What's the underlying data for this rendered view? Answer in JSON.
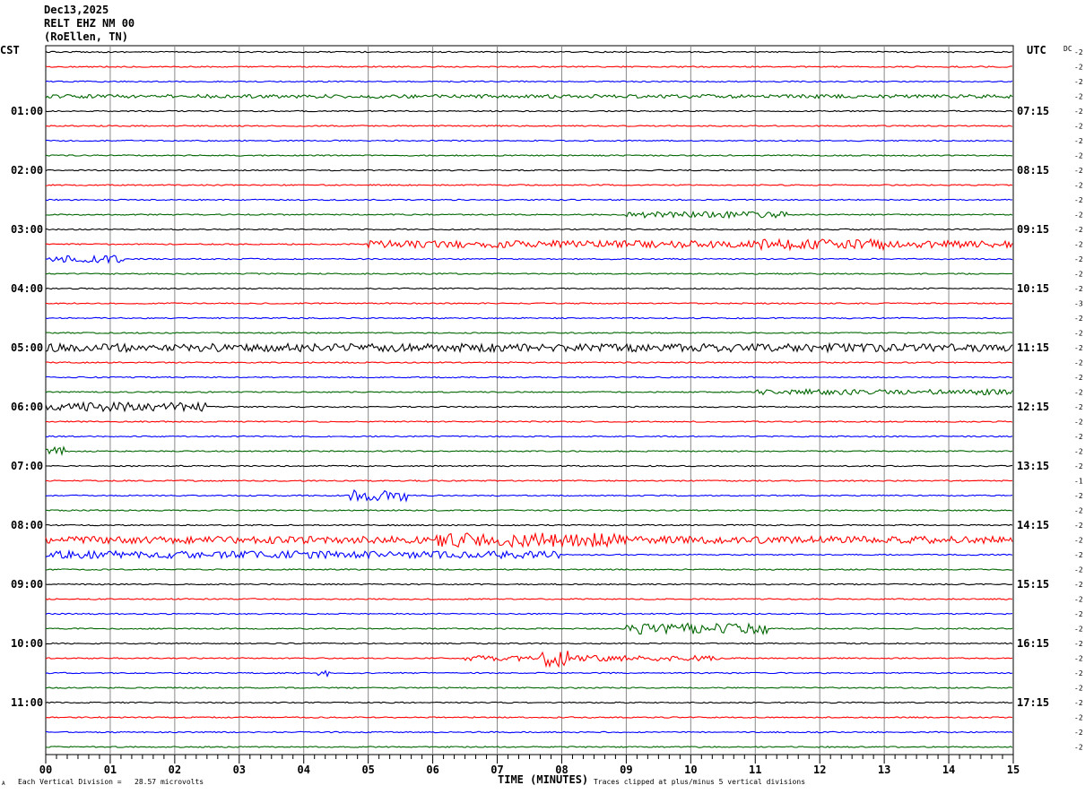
{
  "header": {
    "date": "Dec13,2025",
    "station": "RELT EHZ NM 00",
    "location": "(RoEllen, TN)",
    "left_timezone": "CST",
    "right_timezone": "UTC",
    "dc_label": "DC"
  },
  "footer": {
    "axis_title": "TIME (MINUTES)",
    "scale_note": "Each Vertical Division =   28.57 microvolts",
    "clip_note": "Traces clipped at plus/minus 5 vertical divisions",
    "corner_mark": "A"
  },
  "chart_data": {
    "type": "line",
    "title": "RELT EHZ NM 00",
    "xlabel": "TIME (MINUTES)",
    "ylabel": "",
    "xlim": [
      0,
      15
    ],
    "x_ticks": [
      "00",
      "01",
      "02",
      "03",
      "04",
      "05",
      "06",
      "07",
      "08",
      "09",
      "10",
      "11",
      "12",
      "13",
      "14",
      "15"
    ],
    "trace_minutes": 15,
    "trace_colors": [
      "#000000",
      "#ff0000",
      "#0000ff",
      "#006600"
    ],
    "left_hour_labels": [
      "01:00",
      "02:00",
      "03:00",
      "04:00",
      "05:00",
      "06:00",
      "07:00",
      "08:00",
      "09:00",
      "10:00",
      "11:00"
    ],
    "right_hour_labels": [
      "07:15",
      "08:15",
      "09:15",
      "10:15",
      "11:15",
      "12:15",
      "13:15",
      "14:15",
      "15:15",
      "16:15",
      "17:15"
    ],
    "dc_offsets": [
      "-2",
      "-2",
      "-2",
      "-2",
      "-2",
      "-2",
      "-2",
      "-2",
      "-2",
      "-2",
      "-2",
      "-2",
      "-2",
      "-2",
      "-2",
      "-2",
      "-2",
      "-3",
      "-2",
      "-2",
      "-2",
      "-2",
      "-2",
      "-2",
      "-2",
      "-2",
      "-2",
      "-2",
      "-2",
      "-1",
      "-2",
      "-2",
      "-2",
      "-2",
      "-2",
      "-2",
      "-2",
      "-2",
      "-2",
      "-2",
      "-2",
      "-2",
      "-2",
      "-2",
      "-2",
      "-2",
      "-2",
      "-2"
    ],
    "trace_activity": [
      {
        "trace": 3,
        "from_min": 0,
        "to_min": 15,
        "amplitude": 2.0
      },
      {
        "trace": 11,
        "from_min": 9,
        "to_min": 11.5,
        "amplitude": 3.5
      },
      {
        "trace": 13,
        "from_min": 5,
        "to_min": 15,
        "amplitude": 4.0
      },
      {
        "trace": 13,
        "from_min": 11,
        "to_min": 13,
        "amplitude": 6.0
      },
      {
        "trace": 14,
        "from_min": 0,
        "to_min": 1.2,
        "amplitude": 4.0
      },
      {
        "trace": 20,
        "from_min": 0,
        "to_min": 15,
        "amplitude": 4.5
      },
      {
        "trace": 23,
        "from_min": 11,
        "to_min": 15,
        "amplitude": 3.0
      },
      {
        "trace": 24,
        "from_min": 0,
        "to_min": 2.5,
        "amplitude": 5.0
      },
      {
        "trace": 27,
        "from_min": 0,
        "to_min": 0.3,
        "amplitude": 5.0
      },
      {
        "trace": 30,
        "from_min": 4.7,
        "to_min": 5.6,
        "amplitude": 6.0
      },
      {
        "trace": 33,
        "from_min": 0,
        "to_min": 15,
        "amplitude": 4.0
      },
      {
        "trace": 33,
        "from_min": 6,
        "to_min": 9,
        "amplitude": 8.0
      },
      {
        "trace": 34,
        "from_min": 0,
        "to_min": 8,
        "amplitude": 4.0
      },
      {
        "trace": 39,
        "from_min": 9,
        "to_min": 11.2,
        "amplitude": 6.0
      },
      {
        "trace": 41,
        "from_min": 6.5,
        "to_min": 10.5,
        "amplitude": 3.0
      },
      {
        "trace": 41,
        "from_min": 7.7,
        "to_min": 8.1,
        "amplitude": 12.0
      },
      {
        "trace": 42,
        "from_min": 4.2,
        "to_min": 4.4,
        "amplitude": 4.0
      }
    ]
  }
}
